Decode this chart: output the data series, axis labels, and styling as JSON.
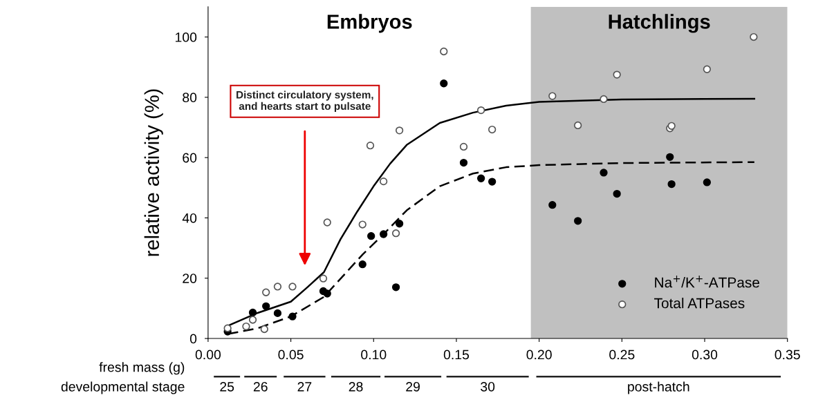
{
  "chart_data": {
    "type": "scatter",
    "ylabel": "relative activity (%)",
    "xlabel": "fresh mass (g)",
    "xlim": [
      0,
      0.35
    ],
    "xticks": [
      {
        "value": 0,
        "label": "0.00"
      },
      {
        "value": 0.05,
        "label": "0.05"
      },
      {
        "value": 0.1,
        "label": "0.10"
      },
      {
        "value": 0.15,
        "label": "0.15"
      },
      {
        "value": 0.2,
        "label": "0.20"
      },
      {
        "value": 0.25,
        "label": "0.25"
      },
      {
        "value": 0.3,
        "label": "0.30"
      },
      {
        "value": 0.35,
        "label": "0.35"
      }
    ],
    "ylim": [
      0,
      110
    ],
    "yticks": [
      0,
      20,
      40,
      60,
      80,
      100
    ],
    "grid": false,
    "legend": "bottom right",
    "series": [
      {
        "name": "Na$^{+}$/K$^{+}$-ATPase",
        "marker": "circle",
        "color": "#000000",
        "x": [
          0.0118,
          0.027,
          0.035,
          0.042,
          0.051,
          0.0696,
          0.072,
          0.0933,
          0.0985,
          0.106,
          0.1135,
          0.1156,
          0.1424,
          0.1544,
          0.1649,
          0.1716,
          0.208,
          0.2234,
          0.239,
          0.247,
          0.279,
          0.28,
          0.3014
        ],
        "values": [
          2.3,
          8.6,
          10.7,
          8.4,
          7.3,
          15.7,
          14.9,
          24.6,
          34.0,
          34.6,
          17.0,
          38.1,
          84.6,
          58.3,
          53.1,
          52.0,
          44.3,
          39.0,
          55.0,
          48.0,
          60.2,
          51.2,
          51.8
        ]
      },
      {
        "name": "Total ATPases",
        "marker": "circle",
        "color": "#ffffff",
        "x": [
          0.0118,
          0.023,
          0.027,
          0.034,
          0.035,
          0.042,
          0.051,
          0.0696,
          0.072,
          0.0933,
          0.098,
          0.106,
          0.1135,
          0.1156,
          0.1424,
          0.1544,
          0.1649,
          0.1716,
          0.208,
          0.2234,
          0.239,
          0.247,
          0.279,
          0.28,
          0.3014,
          0.3296
        ],
        "values": [
          3.4,
          4.0,
          6.2,
          3.1,
          15.3,
          17.2,
          17.2,
          19.9,
          38.5,
          37.8,
          64.0,
          52.1,
          34.9,
          69.0,
          95.2,
          63.6,
          75.7,
          69.3,
          80.4,
          70.7,
          79.4,
          87.5,
          69.7,
          70.5,
          89.3,
          100
        ]
      },
      {
        "type": "line",
        "line_style": "solid",
        "color": "#000000",
        "x": [
          0.012,
          0.03,
          0.05,
          0.06,
          0.07,
          0.08,
          0.09,
          0.1,
          0.11,
          0.12,
          0.14,
          0.16,
          0.18,
          0.2,
          0.25,
          0.33
        ],
        "values": [
          4.2,
          8.5,
          12.2,
          17,
          22,
          32.9,
          42,
          50.5,
          58,
          64.2,
          71.5,
          74.9,
          77.2,
          78.5,
          79.3,
          79.5
        ]
      },
      {
        "type": "line",
        "line_style": "dashed",
        "color": "#000000",
        "x": [
          0.012,
          0.03,
          0.05,
          0.07,
          0.0936,
          0.106,
          0.12,
          0.14,
          0.16,
          0.18,
          0.2,
          0.25,
          0.33
        ],
        "values": [
          1.5,
          3.4,
          7.3,
          13.8,
          28,
          34.6,
          42.5,
          50.5,
          54.7,
          56.8,
          57.5,
          58.2,
          58.5
        ]
      }
    ],
    "bands": [
      {
        "axis": "x",
        "from": 0.195,
        "to": 0.35,
        "label": "Hatchlings",
        "color": "#c0c0c0"
      }
    ],
    "annotations": [
      "Embryos",
      "Distinct circulatory system,\nand hearts start to pulsate",
      "developmental stage",
      "25",
      "26",
      "27",
      "28",
      "29",
      "30",
      "post-hatch"
    ]
  }
}
